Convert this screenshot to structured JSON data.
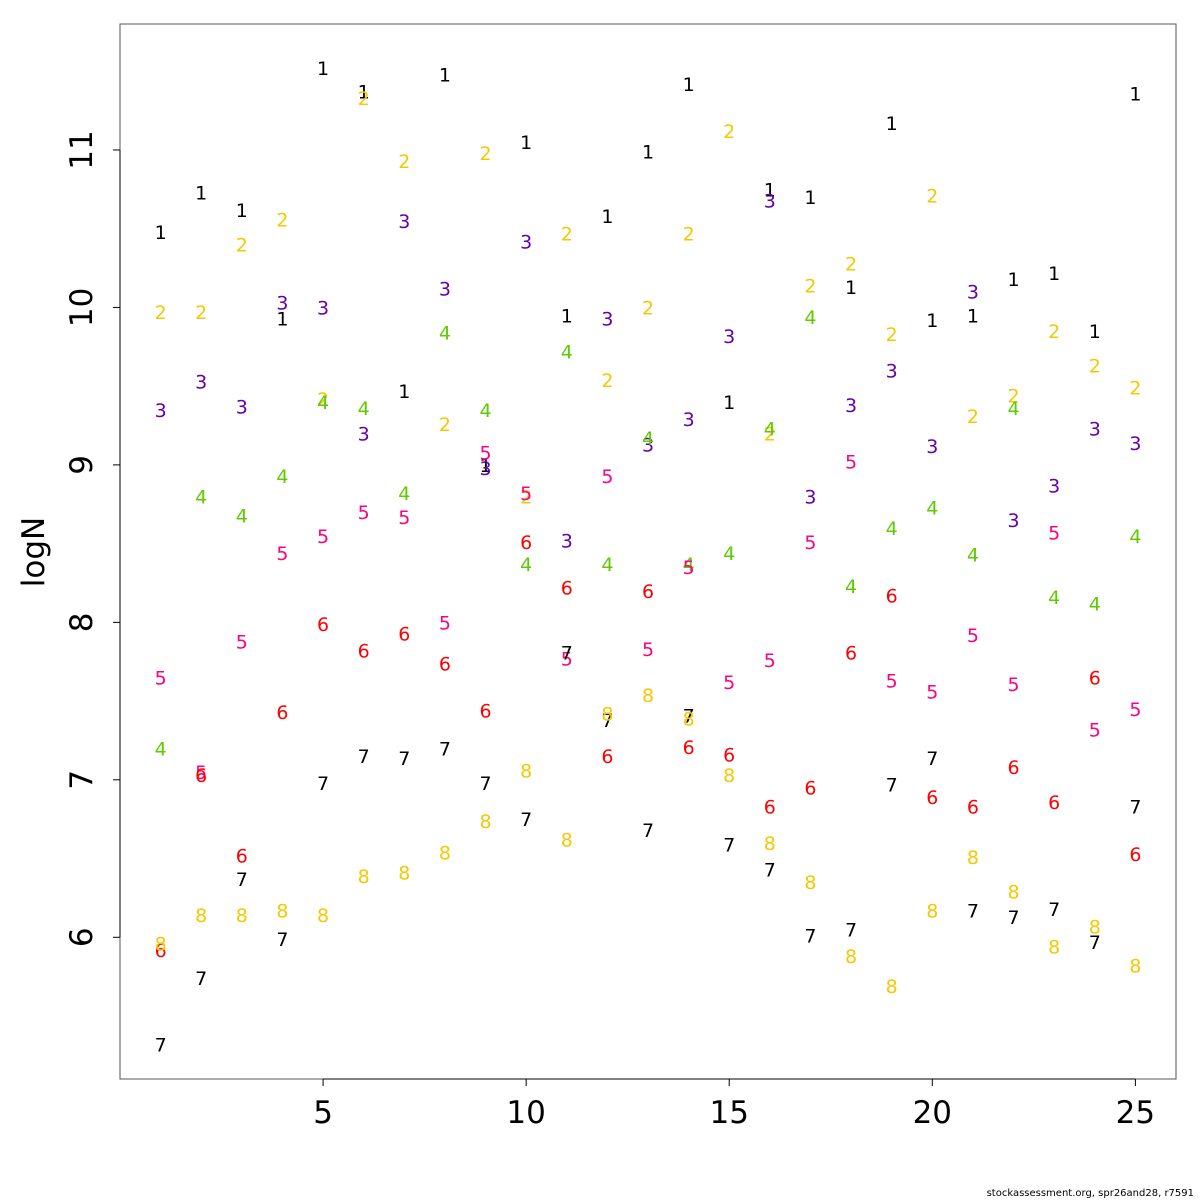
{
  "chart_data": {
    "type": "scatter",
    "xlabel": "",
    "ylabel": "logN",
    "xlim": [
      0,
      26
    ],
    "ylim": [
      5.1,
      11.8
    ],
    "xticks": [
      5,
      10,
      15,
      20,
      25
    ],
    "yticks": [
      6,
      7,
      8,
      9,
      10,
      11
    ],
    "grid": false,
    "marker": "age-number-label",
    "x": [
      1,
      2,
      3,
      4,
      5,
      6,
      7,
      8,
      9,
      10,
      11,
      12,
      13,
      14,
      15,
      16,
      17,
      18,
      19,
      20,
      21,
      22,
      23,
      24,
      25
    ],
    "series": [
      {
        "name": "1",
        "color": "#000000",
        "values": [
          10.48,
          10.73,
          10.62,
          9.93,
          11.52,
          11.37,
          9.47,
          11.48,
          9.0,
          11.05,
          9.95,
          10.58,
          10.99,
          11.42,
          9.4,
          10.75,
          10.7,
          10.13,
          11.17,
          9.92,
          9.95,
          10.18,
          10.22,
          9.85,
          11.36
        ]
      },
      {
        "name": "2",
        "color": "#f5c800",
        "values": [
          9.97,
          9.97,
          10.4,
          10.56,
          9.42,
          11.33,
          10.93,
          9.26,
          10.98,
          8.8,
          10.47,
          9.54,
          10.0,
          10.47,
          11.12,
          9.2,
          10.14,
          10.28,
          9.83,
          10.71,
          9.31,
          9.44,
          9.85,
          9.63,
          9.49
        ]
      },
      {
        "name": "3",
        "color": "#6600aa",
        "values": [
          9.35,
          9.53,
          9.37,
          10.03,
          10.0,
          9.2,
          10.55,
          10.12,
          8.98,
          10.42,
          8.52,
          9.93,
          9.13,
          9.29,
          9.82,
          10.68,
          8.8,
          9.38,
          9.6,
          9.12,
          10.1,
          8.65,
          8.87,
          9.23,
          9.14
        ]
      },
      {
        "name": "4",
        "color": "#5ecb00",
        "values": [
          7.2,
          8.8,
          8.68,
          8.93,
          9.4,
          9.36,
          8.82,
          9.84,
          9.35,
          8.37,
          9.72,
          8.37,
          9.17,
          8.37,
          8.44,
          9.23,
          9.94,
          8.23,
          8.6,
          8.73,
          8.43,
          9.36,
          8.16,
          8.12,
          8.55
        ]
      },
      {
        "name": "5",
        "color": "#ff0080",
        "values": [
          7.65,
          7.05,
          7.88,
          8.44,
          8.55,
          8.7,
          8.67,
          8.0,
          9.08,
          8.82,
          7.77,
          8.93,
          7.83,
          8.35,
          7.62,
          7.76,
          8.51,
          9.02,
          7.63,
          7.56,
          7.92,
          7.61,
          8.57,
          7.32,
          7.45
        ]
      },
      {
        "name": "6",
        "color": "#ff0000",
        "values": [
          5.92,
          7.03,
          6.52,
          7.43,
          7.99,
          7.82,
          7.93,
          7.74,
          7.44,
          8.51,
          8.22,
          7.15,
          8.2,
          7.21,
          7.16,
          6.83,
          6.95,
          7.81,
          8.17,
          6.89,
          6.83,
          7.08,
          6.86,
          7.65,
          6.53
        ]
      },
      {
        "name": "7",
        "color": "#000000",
        "values": [
          5.32,
          5.74,
          6.37,
          5.99,
          6.98,
          7.15,
          7.14,
          7.2,
          6.98,
          6.75,
          7.81,
          7.38,
          6.68,
          7.41,
          6.59,
          6.43,
          6.01,
          6.05,
          6.97,
          7.14,
          6.17,
          6.13,
          6.18,
          5.97,
          6.83
        ]
      },
      {
        "name": "8",
        "color": "#f5c800",
        "values": [
          5.96,
          6.14,
          6.14,
          6.17,
          6.14,
          6.39,
          6.41,
          6.54,
          6.74,
          7.06,
          6.62,
          7.42,
          7.54,
          7.39,
          7.03,
          6.6,
          6.35,
          5.88,
          5.69,
          6.17,
          6.51,
          6.29,
          5.94,
          6.07,
          5.82
        ]
      }
    ]
  },
  "footer": "stockassessment.org, spr26and28, r7591"
}
